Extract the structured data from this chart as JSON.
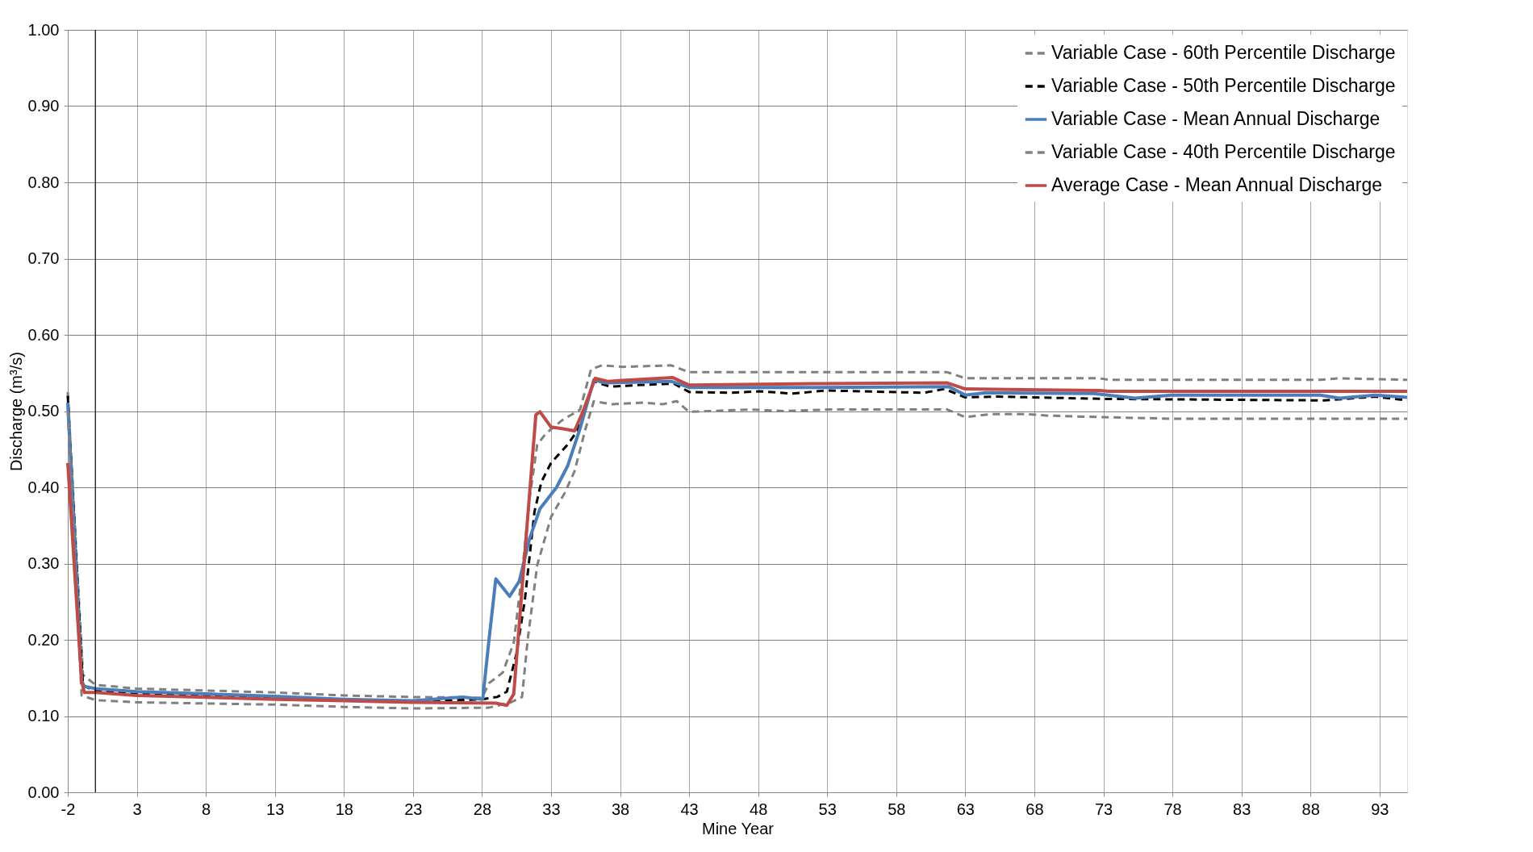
{
  "chart_data": {
    "type": "line",
    "xlabel": "Mine Year",
    "ylabel": "Discharge (m³/s)",
    "xlim": [
      -2,
      95
    ],
    "xticks": [
      -2,
      3,
      8,
      13,
      18,
      23,
      28,
      33,
      38,
      43,
      48,
      53,
      58,
      63,
      68,
      73,
      78,
      83,
      88,
      93
    ],
    "ylim": [
      0,
      1
    ],
    "yticks": [
      {
        "value": 0,
        "label": "0.00"
      },
      {
        "value": 0.1,
        "label": "0.10"
      },
      {
        "value": 0.2,
        "label": "0.20"
      },
      {
        "value": 0.3,
        "label": "0.30"
      },
      {
        "value": 0.4,
        "label": "0.40"
      },
      {
        "value": 0.5,
        "label": "0.50"
      },
      {
        "value": 0.6,
        "label": "0.60"
      },
      {
        "value": 0.7,
        "label": "0.70"
      },
      {
        "value": 0.8,
        "label": "0.80"
      },
      {
        "value": 0.9,
        "label": "0.90"
      },
      {
        "value": 1,
        "label": "1.00"
      }
    ],
    "grid": true,
    "legend": "top right",
    "ref_lines": [
      {
        "axis": "x",
        "value": 0,
        "color": "#000000"
      }
    ],
    "series": [
      {
        "name": "Variable Case - 60th Percentile Discharge",
        "color": "#808080",
        "line_style": "dashed",
        "x": [
          -2,
          -0.9,
          0,
          3,
          13,
          18,
          23,
          28,
          28.5,
          29.5,
          30.3,
          30.9,
          31.45,
          32,
          32.6,
          33.8,
          35.1,
          35.9,
          36.7,
          38.2,
          41.7,
          43,
          61.7,
          63,
          72.7,
          73.4,
          88.7,
          90,
          95
        ],
        "values": [
          0.525,
          0.154,
          0.141,
          0.136,
          0.131,
          0.127,
          0.125,
          0.124,
          0.143,
          0.157,
          0.196,
          0.287,
          0.386,
          0.456,
          0.47,
          0.488,
          0.502,
          0.555,
          0.56,
          0.558,
          0.56,
          0.551,
          0.551,
          0.543,
          0.543,
          0.541,
          0.541,
          0.543,
          0.541
        ]
      },
      {
        "name": "Variable Case - 50th Percentile Discharge",
        "color": "#000000",
        "line_style": "dashed",
        "x": [
          -2,
          -0.9,
          0,
          3,
          13,
          18,
          23,
          28,
          29.1,
          29.8,
          30.5,
          31.1,
          31.8,
          32.3,
          33,
          34.2,
          34.9,
          36.1,
          37.3,
          39.2,
          41.9,
          43,
          45.9,
          48.1,
          50.4,
          53,
          60,
          61.5,
          63,
          65.2,
          73,
          89,
          92.7,
          95
        ],
        "values": [
          0.52,
          0.14,
          0.133,
          0.129,
          0.124,
          0.121,
          0.119,
          0.122,
          0.125,
          0.132,
          0.182,
          0.252,
          0.368,
          0.407,
          0.432,
          0.456,
          0.474,
          0.539,
          0.532,
          0.534,
          0.536,
          0.525,
          0.524,
          0.526,
          0.523,
          0.527,
          0.524,
          0.529,
          0.518,
          0.519,
          0.516,
          0.514,
          0.519,
          0.514
        ]
      },
      {
        "name": "Variable Case - Mean Annual Discharge",
        "color": "#4a7ebb",
        "line_style": "solid",
        "x": [
          -2,
          -1,
          -0.8,
          0,
          3,
          13,
          18,
          23,
          26.6,
          28.05,
          28.5,
          29,
          30,
          30.7,
          31.45,
          32.2,
          33.4,
          34.2,
          35.1,
          36.1,
          36.9,
          41.7,
          43,
          52,
          61.8,
          63,
          64.5,
          72.3,
          75.3,
          77.9,
          88.7,
          90.1,
          92.7,
          95
        ],
        "values": [
          0.511,
          0.146,
          0.139,
          0.136,
          0.132,
          0.126,
          0.122,
          0.12,
          0.125,
          0.122,
          0.199,
          0.28,
          0.257,
          0.277,
          0.333,
          0.372,
          0.4,
          0.428,
          0.477,
          0.541,
          0.537,
          0.539,
          0.531,
          0.531,
          0.532,
          0.521,
          0.524,
          0.523,
          0.517,
          0.521,
          0.521,
          0.517,
          0.521,
          0.518
        ]
      },
      {
        "name": "Variable Case - 40th Percentile Discharge",
        "color": "#808080",
        "line_style": "dashed",
        "x": [
          -2,
          -1,
          0,
          3,
          13,
          18,
          23,
          28.5,
          30.1,
          30.9,
          31.3,
          32,
          33,
          34,
          34.7,
          35.5,
          36.1,
          37.4,
          39.6,
          41.1,
          42.1,
          43,
          47.4,
          50,
          53,
          61.7,
          63,
          64.9,
          67.5,
          69,
          73,
          77.9,
          95
        ],
        "values": [
          0.5,
          0.127,
          0.121,
          0.118,
          0.115,
          0.112,
          0.11,
          0.111,
          0.118,
          0.125,
          0.199,
          0.298,
          0.361,
          0.393,
          0.421,
          0.477,
          0.513,
          0.509,
          0.511,
          0.509,
          0.513,
          0.499,
          0.502,
          0.5,
          0.502,
          0.502,
          0.492,
          0.496,
          0.496,
          0.494,
          0.492,
          0.49,
          0.49
        ]
      },
      {
        "name": "Average Case - Mean Annual Discharge",
        "color": "#be4b48",
        "line_style": "solid",
        "x": [
          -2,
          -1,
          -0.8,
          0,
          3,
          13,
          18,
          23,
          29,
          29.8,
          30.3,
          31.45,
          31.9,
          32.2,
          33,
          33.8,
          34.7,
          35.3,
          36.2,
          37.1,
          41.8,
          43,
          52,
          61.7,
          63,
          72.7,
          73.4,
          95
        ],
        "values": [
          0.432,
          0.146,
          0.131,
          0.131,
          0.127,
          0.122,
          0.12,
          0.118,
          0.117,
          0.114,
          0.129,
          0.393,
          0.495,
          0.499,
          0.479,
          0.477,
          0.474,
          0.499,
          0.543,
          0.539,
          0.544,
          0.534,
          0.536,
          0.537,
          0.529,
          0.527,
          0.526,
          0.526
        ]
      }
    ]
  }
}
